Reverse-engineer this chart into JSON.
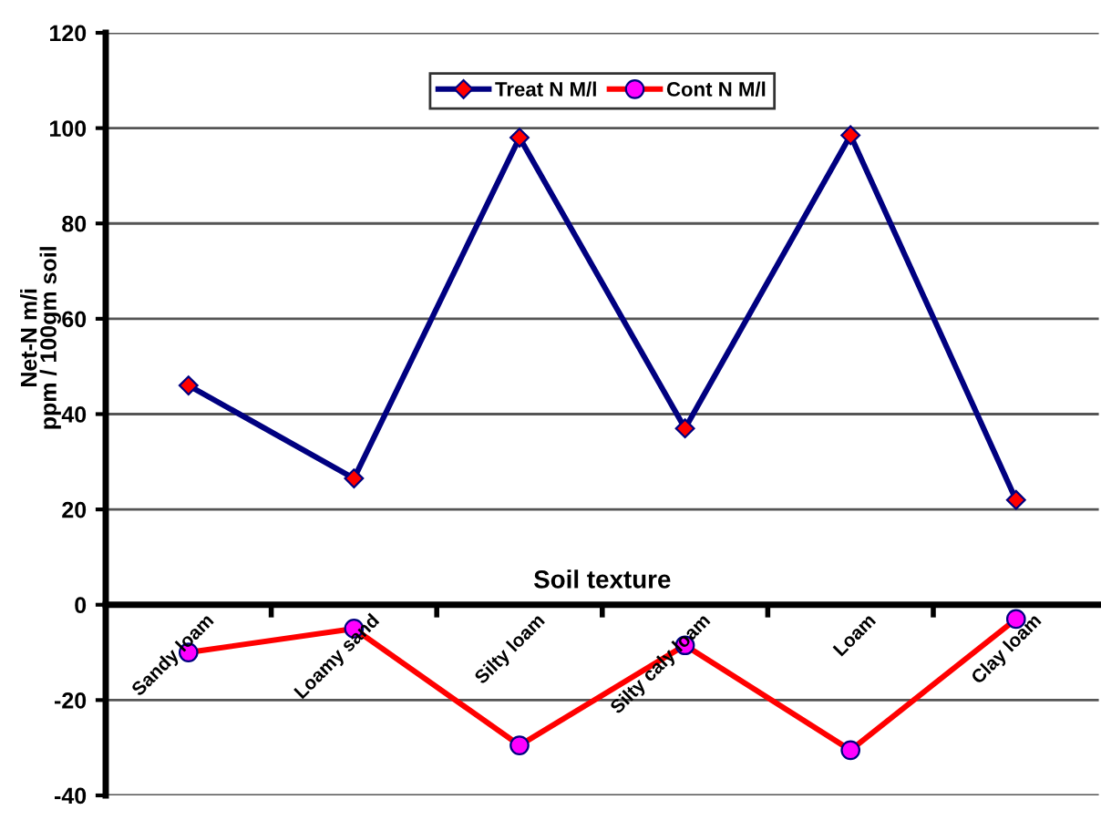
{
  "chart_data": {
    "type": "line",
    "xlabel": "Soil texture",
    "ylabel": "Net-N m/i\nppm / 100gm soil",
    "categories": [
      "Sandy loam",
      "Loamy sand",
      "Silty loam",
      "Silty caly loam",
      "Loam",
      "Clay loam"
    ],
    "series": [
      {
        "name": "Treat N M/l",
        "color": "#000080",
        "marker": "diamond",
        "values": [
          46,
          26.5,
          98,
          37,
          98.5,
          22
        ]
      },
      {
        "name": "Cont N M/l",
        "color": "#ff0000",
        "marker": "circle",
        "values": [
          -10,
          -5,
          -29.5,
          -8.5,
          -30.5,
          -3
        ]
      }
    ],
    "ylim": [
      -40,
      120
    ],
    "yticks": [
      -40,
      -20,
      0,
      20,
      40,
      60,
      80,
      100,
      120
    ],
    "grid": "y",
    "legend": "top"
  }
}
